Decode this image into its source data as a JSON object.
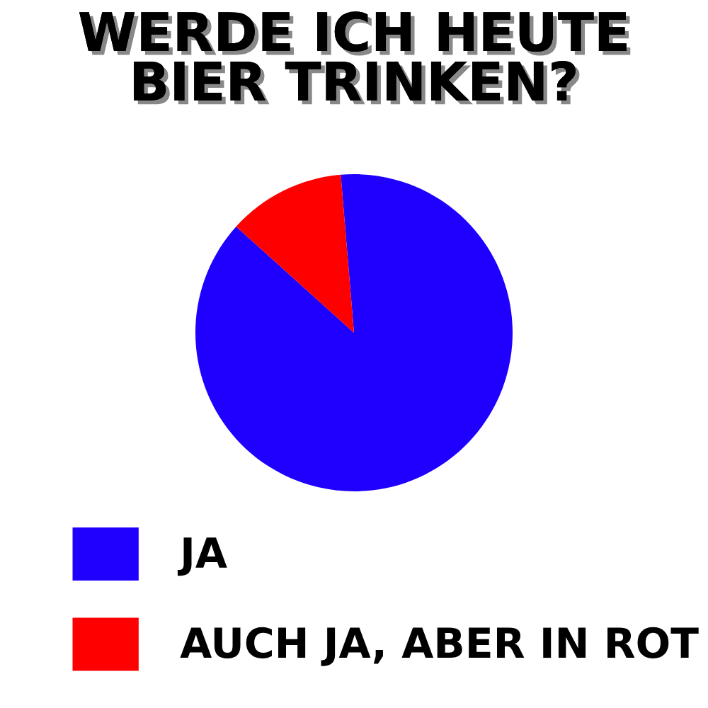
{
  "chart_data": {
    "type": "pie",
    "title": "WERDE ICH HEUTE\nBIER TRINKEN?",
    "categories": [
      "JA",
      "AUCH JA, ABER IN ROT"
    ],
    "values": [
      88,
      12
    ],
    "colors": [
      "#1f00ff",
      "#ff0000"
    ],
    "legend": "bottom"
  }
}
